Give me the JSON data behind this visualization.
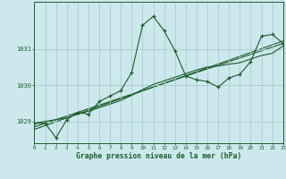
{
  "xlabel": "Graphe pression niveau de la mer (hPa)",
  "bg_color": "#cce8ed",
  "grid_color": "#aacccc",
  "line_color": "#1a5c28",
  "x_min": 0,
  "x_max": 23,
  "y_min": 1028.4,
  "y_max": 1032.3,
  "yticks": [
    1029,
    1030,
    1031
  ],
  "xticks": [
    0,
    1,
    2,
    3,
    4,
    5,
    6,
    7,
    8,
    9,
    10,
    11,
    12,
    13,
    14,
    15,
    16,
    17,
    18,
    19,
    20,
    21,
    22,
    23
  ],
  "series1_x": [
    0,
    1,
    2,
    3,
    4,
    5,
    6,
    7,
    8,
    9,
    10,
    11,
    12,
    13,
    14,
    15,
    16,
    17,
    18,
    19,
    20,
    21,
    22,
    23
  ],
  "series1_y": [
    1028.95,
    1028.95,
    1028.55,
    1029.05,
    1029.25,
    1029.2,
    1029.55,
    1029.7,
    1029.85,
    1030.35,
    1031.65,
    1031.9,
    1031.5,
    1030.95,
    1030.25,
    1030.15,
    1030.1,
    1029.95,
    1030.2,
    1030.3,
    1030.65,
    1031.35,
    1031.4,
    1031.15
  ],
  "series2_x": [
    0,
    1,
    2,
    3,
    4,
    5,
    6,
    7,
    8,
    9,
    10,
    11,
    12,
    13,
    14,
    15,
    16,
    17,
    18,
    19,
    20,
    21,
    22,
    23
  ],
  "series2_y": [
    1028.95,
    1029.0,
    1029.05,
    1029.1,
    1029.2,
    1029.28,
    1029.38,
    1029.48,
    1029.58,
    1029.72,
    1029.88,
    1030.02,
    1030.12,
    1030.22,
    1030.32,
    1030.42,
    1030.5,
    1030.53,
    1030.58,
    1030.62,
    1030.72,
    1030.82,
    1030.88,
    1031.08
  ],
  "series3_x": [
    0,
    23
  ],
  "series3_y": [
    1028.85,
    1031.15
  ],
  "series4_x": [
    0,
    23
  ],
  "series4_y": [
    1028.78,
    1031.22
  ]
}
